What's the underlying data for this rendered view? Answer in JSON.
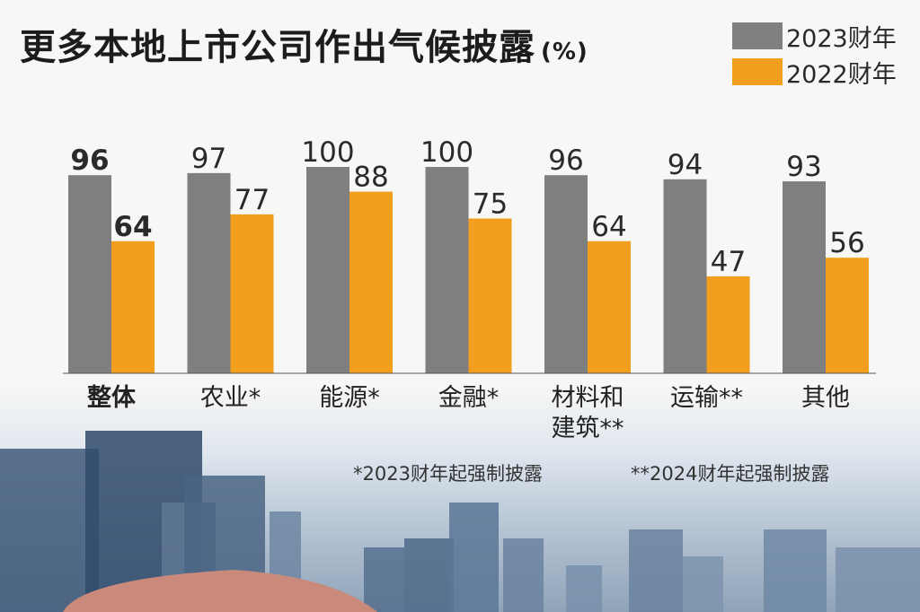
{
  "title": "更多本地上市公司作出气候披露",
  "title_unit": "(%)",
  "colors": {
    "series_2023": "#7f7f7f",
    "series_2022": "#f29e1e"
  },
  "footnotes": [
    "*2023财年起强制披露",
    "**2024财年起强制披露"
  ],
  "chart_data": {
    "type": "bar",
    "title": "更多本地上市公司作出气候披露",
    "ylabel": "",
    "xlabel": "",
    "ylim": [
      0,
      100
    ],
    "grid": false,
    "legend_position": "top-right",
    "categories": [
      "整体",
      "农业*",
      "能源*",
      "金融*",
      "材料和建筑**",
      "运输**",
      "其他"
    ],
    "category_lines": [
      [
        "整体"
      ],
      [
        "农业*"
      ],
      [
        "能源*"
      ],
      [
        "金融*"
      ],
      [
        "材料和",
        "建筑**"
      ],
      [
        "运输**"
      ],
      [
        "其他"
      ]
    ],
    "series": [
      {
        "name": "2023财年",
        "color": "#7f7f7f",
        "values": [
          96,
          97,
          100,
          100,
          96,
          94,
          93
        ]
      },
      {
        "name": "2022财年",
        "color": "#f29e1e",
        "values": [
          64,
          77,
          88,
          75,
          64,
          47,
          56
        ]
      }
    ]
  }
}
